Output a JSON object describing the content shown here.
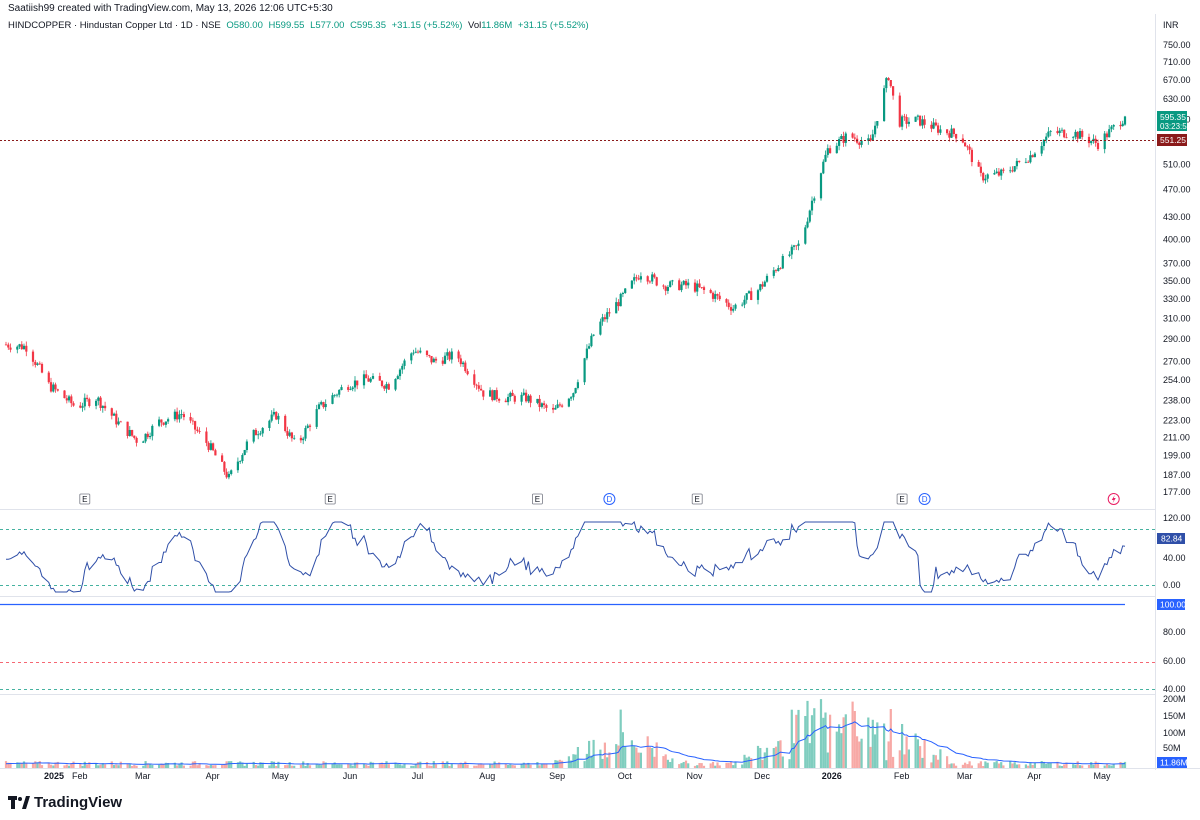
{
  "header": {
    "created_by": "Saatiish99 created with TradingView.com, May 13, 2026 12:06 UTC+5:30"
  },
  "legend": {
    "symbol": "HINDCOPPER · Hindustan Copper Ltd · 1D · NSE",
    "open": "O580.00",
    "high": "H599.55",
    "low": "L577.00",
    "close": "C595.35",
    "change": "+31.15 (+5.52%)",
    "vol_label": "Vol",
    "vol_value": "11.86M",
    "vol_change": "+31.15 (+5.52%)"
  },
  "price_axis": {
    "currency": "INR",
    "ticks": [
      "750.00",
      "710.00",
      "670.00",
      "630.00",
      "590.00",
      "551.25",
      "510.00",
      "470.00",
      "430.00",
      "400.00",
      "370.00",
      "350.00",
      "330.00",
      "310.00",
      "290.00",
      "270.00",
      "254.00",
      "238.00",
      "223.00",
      "211.00",
      "199.00",
      "187.00",
      "177.00"
    ],
    "last_price": "595.35",
    "countdown": "03:23:56",
    "line_price": "551.25"
  },
  "osc1_axis": {
    "ticks": [
      "120.00",
      "40.00",
      "0.00"
    ],
    "value": "82.84"
  },
  "osc2_axis": {
    "ticks": [
      "100.00",
      "80.00",
      "60.00",
      "40.00"
    ],
    "value": "100.00"
  },
  "volume_axis": {
    "ticks": [
      "200M",
      "150M",
      "100M",
      "50M"
    ],
    "value": "11.86M"
  },
  "time_axis": {
    "labels": [
      {
        "text": "2025",
        "bold": true
      },
      {
        "text": "Feb",
        "bold": false
      },
      {
        "text": "Mar",
        "bold": false
      },
      {
        "text": "Apr",
        "bold": false
      },
      {
        "text": "May",
        "bold": false
      },
      {
        "text": "Jun",
        "bold": false
      },
      {
        "text": "Jul",
        "bold": false
      },
      {
        "text": "Aug",
        "bold": false
      },
      {
        "text": "Sep",
        "bold": false
      },
      {
        "text": "Oct",
        "bold": false
      },
      {
        "text": "Nov",
        "bold": false
      },
      {
        "text": "Dec",
        "bold": false
      },
      {
        "text": "2026",
        "bold": true
      },
      {
        "text": "Feb",
        "bold": false
      },
      {
        "text": "Mar",
        "bold": false
      },
      {
        "text": "Apr",
        "bold": false
      },
      {
        "text": "May",
        "bold": false
      }
    ]
  },
  "events": [
    {
      "type": "E"
    },
    {
      "type": "E"
    },
    {
      "type": "E"
    },
    {
      "type": "D"
    },
    {
      "type": "E"
    },
    {
      "type": "E"
    },
    {
      "type": "D"
    },
    {
      "type": "flash"
    }
  ],
  "footer": {
    "brand": "TradingView"
  },
  "colors": {
    "up": "#089981",
    "down": "#f23645",
    "osc": "#2962ff",
    "line_red": "#8b1a1a",
    "vol_up": "#7fcdbf",
    "vol_down": "#f7a9a6",
    "dashed": "#089981"
  },
  "chart_data": {
    "type": "candlestick",
    "title": "HINDCOPPER · Hindustan Copper Ltd · 1D · NSE",
    "ylabel": "INR",
    "last": {
      "open": 580.0,
      "high": 599.55,
      "low": 577.0,
      "close": 595.35,
      "volume": "11.86M"
    },
    "price_path": [
      [
        "2025-01-01",
        285
      ],
      [
        "2025-01-10",
        283
      ],
      [
        "2025-01-20",
        250
      ],
      [
        "2025-02-01",
        233
      ],
      [
        "2025-02-10",
        240
      ],
      [
        "2025-02-20",
        221
      ],
      [
        "2025-03-01",
        208
      ],
      [
        "2025-03-10",
        222
      ],
      [
        "2025-03-20",
        228
      ],
      [
        "2025-04-01",
        206
      ],
      [
        "2025-04-10",
        185
      ],
      [
        "2025-04-20",
        212
      ],
      [
        "2025-05-01",
        227
      ],
      [
        "2025-05-10",
        205
      ],
      [
        "2025-05-20",
        232
      ],
      [
        "2025-06-01",
        250
      ],
      [
        "2025-06-10",
        255
      ],
      [
        "2025-06-20",
        250
      ],
      [
        "2025-07-01",
        280
      ],
      [
        "2025-07-10",
        270
      ],
      [
        "2025-07-20",
        276
      ],
      [
        "2025-08-01",
        244
      ],
      [
        "2025-08-10",
        240
      ],
      [
        "2025-08-20",
        240
      ],
      [
        "2025-09-01",
        229
      ],
      [
        "2025-09-10",
        245
      ],
      [
        "2025-09-20",
        300
      ],
      [
        "2025-10-01",
        330
      ],
      [
        "2025-10-10",
        360
      ],
      [
        "2025-10-20",
        345
      ],
      [
        "2025-11-01",
        345
      ],
      [
        "2025-11-10",
        336
      ],
      [
        "2025-11-20",
        321
      ],
      [
        "2025-12-01",
        340
      ],
      [
        "2025-12-10",
        368
      ],
      [
        "2025-12-20",
        395
      ],
      [
        "2026-01-01",
        535
      ],
      [
        "2026-01-10",
        560
      ],
      [
        "2026-01-20",
        545
      ],
      [
        "2026-01-28",
        680
      ],
      [
        "2026-02-01",
        585
      ],
      [
        "2026-02-10",
        588
      ],
      [
        "2026-02-20",
        570
      ],
      [
        "2026-03-01",
        560
      ],
      [
        "2026-03-10",
        490
      ],
      [
        "2026-03-20",
        495
      ],
      [
        "2026-04-01",
        525
      ],
      [
        "2026-04-10",
        565
      ],
      [
        "2026-04-20",
        565
      ],
      [
        "2026-05-01",
        545
      ],
      [
        "2026-05-13",
        595.35
      ]
    ],
    "oscillator_1": {
      "current": 82.84,
      "levels": [
        120,
        0
      ]
    },
    "oscillator_2": {
      "current": 100.0,
      "levels": [
        100,
        60,
        40
      ]
    },
    "volume_peaks": [
      [
        "2025-10-01",
        "50M"
      ],
      [
        "2025-12-20",
        "150M"
      ],
      [
        "2026-01-05",
        "200M"
      ],
      [
        "2026-01-28",
        "150M"
      ]
    ]
  }
}
